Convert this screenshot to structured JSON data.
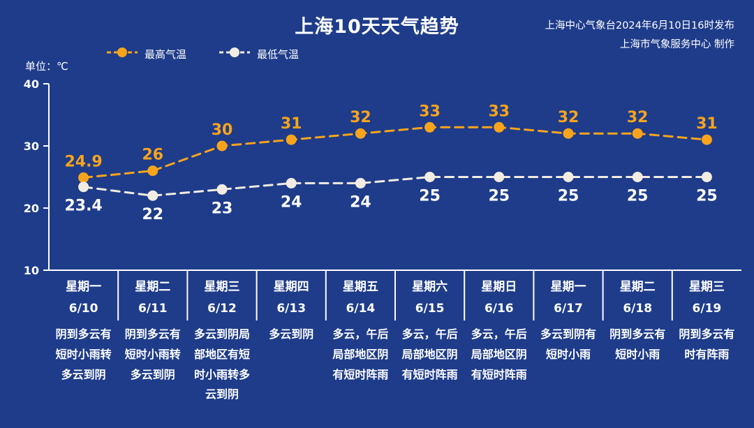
{
  "header": {
    "title": "上海10天天气趋势",
    "publisher_line1": "上海中心气象台2024年6月10日16时发布",
    "publisher_line2": "上海市气象服务中心 制作"
  },
  "unit_label": "单位：℃",
  "legend": [
    {
      "label": "最高气温",
      "color": "#f7a41c"
    },
    {
      "label": "最低气温",
      "color": "#f2ece2"
    }
  ],
  "colors": {
    "background": "#1e3c8a",
    "axis": "#ffffff",
    "text": "#ffffff",
    "max_series": "#f7a41c",
    "min_series": "#f2ece2"
  },
  "chart_data": {
    "type": "line",
    "title": "上海10天天气趋势",
    "ylabel": "单位：℃",
    "ylim": [
      10,
      40
    ],
    "yticks": [
      40,
      30,
      20,
      10
    ],
    "grid": false,
    "legend_position": "top-left",
    "line_style": "dashed",
    "categories": [
      "6/10",
      "6/11",
      "6/12",
      "6/13",
      "6/14",
      "6/15",
      "6/16",
      "6/17",
      "6/18",
      "6/19"
    ],
    "series": [
      {
        "name": "最高气温",
        "color": "#f7a41c",
        "style": "dashed",
        "values": [
          24.9,
          26,
          30,
          31,
          32,
          33,
          33,
          32,
          32,
          31
        ]
      },
      {
        "name": "最低气温",
        "color": "#f2ece2",
        "style": "dashed",
        "values": [
          23.4,
          22,
          23,
          24,
          24,
          25,
          25,
          25,
          25,
          25
        ]
      }
    ],
    "days": [
      {
        "week": "星期一",
        "date": "6/10",
        "desc": "阴到多云有短时小雨转多云到阴"
      },
      {
        "week": "星期二",
        "date": "6/11",
        "desc": "阴到多云有短时小雨转多云到阴"
      },
      {
        "week": "星期三",
        "date": "6/12",
        "desc": "多云到阴局部地区有短时小雨转多云到阴"
      },
      {
        "week": "星期四",
        "date": "6/13",
        "desc": "多云到阴"
      },
      {
        "week": "星期五",
        "date": "6/14",
        "desc": "多云，午后局部地区阴有短时阵雨"
      },
      {
        "week": "星期六",
        "date": "6/15",
        "desc": "多云，午后局部地区阴有短时阵雨"
      },
      {
        "week": "星期日",
        "date": "6/16",
        "desc": "多云，午后局部地区阴有短时阵雨"
      },
      {
        "week": "星期一",
        "date": "6/17",
        "desc": "多云到阴有短时小雨"
      },
      {
        "week": "星期二",
        "date": "6/18",
        "desc": "阴到多云有短时小雨"
      },
      {
        "week": "星期三",
        "date": "6/19",
        "desc": "阴到多云有时有阵雨"
      }
    ]
  }
}
